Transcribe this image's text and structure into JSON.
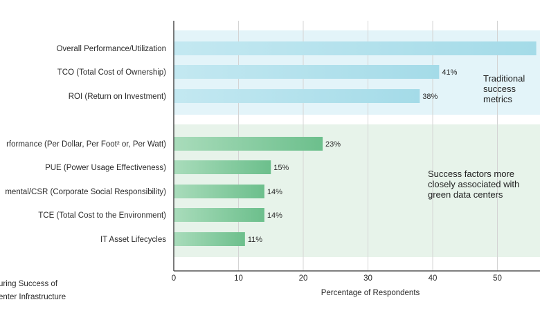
{
  "chart_data": {
    "type": "bar",
    "orientation": "horizontal",
    "xlabel": "Percentage of Respondents",
    "xlim": [
      0,
      56
    ],
    "x_ticks": [
      0,
      10,
      20,
      30,
      40,
      50
    ],
    "grid": true,
    "caption_lines": [
      "uring Success of",
      "enter Infrastructure"
    ],
    "groups": [
      {
        "name_lines": [
          "Traditional",
          "success",
          "metrics"
        ],
        "color": "#a9dde9",
        "band_color": "#e3f4f9",
        "bars": [
          {
            "label": "Overall Performance/Utilization",
            "value": 56,
            "value_label": ""
          },
          {
            "label": "TCO (Total Cost of Ownership)",
            "value": 41,
            "value_label": "41%"
          },
          {
            "label": "ROI (Return on Investment)",
            "value": 38,
            "value_label": "38%"
          }
        ]
      },
      {
        "name_lines": [
          "Success factors more",
          "closely associated with",
          "green data centers"
        ],
        "color": "#7cc79b",
        "band_color": "#e7f3ea",
        "bars": [
          {
            "label": "rformance (Per Dollar, Per Foot² or, Per Watt)",
            "value": 23,
            "value_label": "23%"
          },
          {
            "label": "PUE (Power Usage Effectiveness)",
            "value": 15,
            "value_label": "15%"
          },
          {
            "label": "mental/CSR (Corporate Social Responsibility)",
            "value": 14,
            "value_label": "14%"
          },
          {
            "label": "TCE (Total Cost to the Environment)",
            "value": 14,
            "value_label": "14%"
          },
          {
            "label": "IT Asset Lifecycles",
            "value": 11,
            "value_label": "11%"
          }
        ]
      }
    ]
  }
}
